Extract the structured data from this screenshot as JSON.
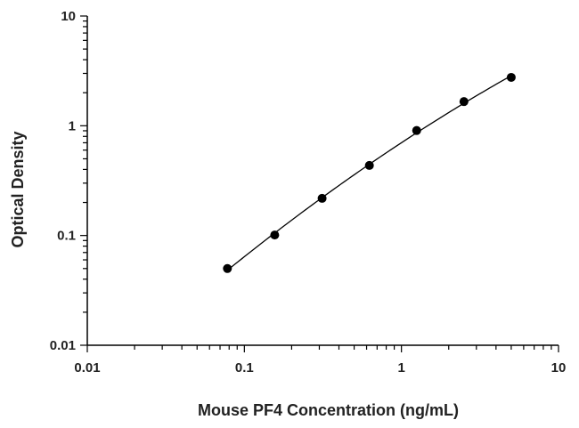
{
  "chart_data": {
    "type": "scatter",
    "title": "",
    "xlabel": "Mouse PF4 Concentration (ng/mL)",
    "ylabel": "Optical Density",
    "x_scale": "log",
    "y_scale": "log",
    "xlim": [
      0.01,
      10
    ],
    "ylim": [
      0.01,
      10
    ],
    "x_ticks": [
      0.01,
      0.1,
      1,
      10
    ],
    "y_ticks": [
      0.01,
      0.1,
      1,
      10
    ],
    "x_tick_labels": [
      "0.01",
      "0.1",
      "1",
      "10"
    ],
    "y_tick_labels": [
      "0.01",
      "0.1",
      "1",
      "10"
    ],
    "grid": false,
    "legend": "none",
    "fit_curve": true,
    "series": [
      {
        "x": [
          0.078,
          0.156,
          0.3125,
          0.625,
          1.25,
          2.5,
          5
        ],
        "y": [
          0.05,
          0.101,
          0.218,
          0.435,
          0.905,
          1.66,
          2.76
        ]
      }
    ],
    "colors": {
      "points": "#000000",
      "curve": "#000000",
      "text": "#222222"
    }
  }
}
